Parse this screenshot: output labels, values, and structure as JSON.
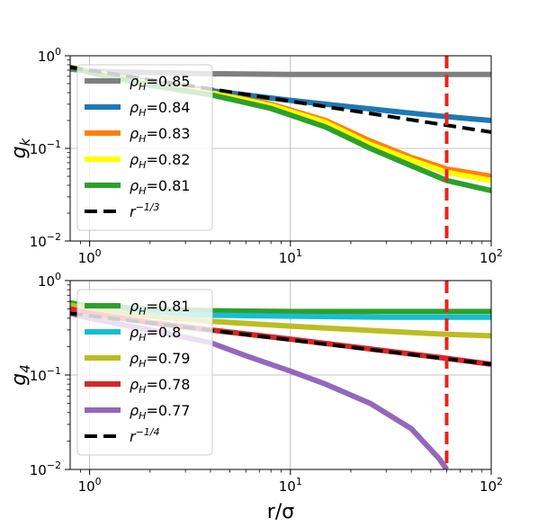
{
  "chart_data": [
    {
      "type": "line",
      "x_scale": "log",
      "y_scale": "log",
      "xlim": [
        0.8,
        100
      ],
      "ylim": [
        0.01,
        1
      ],
      "xlabel": "",
      "ylabel": "g",
      "ylabel_sub": "k",
      "x_ticks": [
        {
          "value": 1,
          "base": "10",
          "exp": "0"
        },
        {
          "value": 10,
          "base": "10",
          "exp": "1"
        },
        {
          "value": 100,
          "base": "10",
          "exp": "2"
        }
      ],
      "y_ticks": [
        {
          "value": 0.01,
          "base": "10",
          "exp": "−2"
        },
        {
          "value": 0.1,
          "base": "10",
          "exp": "−1"
        },
        {
          "value": 1,
          "base": "10",
          "exp": "0"
        }
      ],
      "grid": true,
      "legend_position": "upper-left",
      "vline": {
        "x": 60,
        "color": "#e8241c"
      },
      "series": [
        {
          "name": "0.85",
          "label_sym": "ρ",
          "label_sub": "H",
          "label_rest": "=0.85",
          "color": "#7f7f7f",
          "x": [
            0.8,
            1,
            2,
            4,
            10,
            30,
            100
          ],
          "y": [
            0.72,
            0.68,
            0.66,
            0.64,
            0.63,
            0.63,
            0.63
          ]
        },
        {
          "name": "0.84",
          "label_sym": "ρ",
          "label_sub": "H",
          "label_rest": "=0.84",
          "color": "#1f77b4",
          "x": [
            0.8,
            1,
            2,
            4,
            10,
            20,
            40,
            60,
            100
          ],
          "y": [
            0.75,
            0.68,
            0.52,
            0.42,
            0.33,
            0.28,
            0.24,
            0.22,
            0.2
          ]
        },
        {
          "name": "0.83",
          "label_sym": "ρ",
          "label_sub": "H",
          "label_rest": "=0.83",
          "color": "#ff7f0e",
          "x": [
            0.8,
            1,
            2,
            4,
            8,
            15,
            25,
            40,
            60,
            100
          ],
          "y": [
            0.75,
            0.68,
            0.5,
            0.4,
            0.3,
            0.2,
            0.12,
            0.08,
            0.06,
            0.05
          ]
        },
        {
          "name": "0.82",
          "label_sym": "ρ",
          "label_sub": "H",
          "label_rest": "=0.82",
          "color": "#ffff00",
          "x": [
            0.8,
            1,
            2,
            4,
            8,
            15,
            25,
            40,
            60,
            100
          ],
          "y": [
            0.75,
            0.68,
            0.5,
            0.4,
            0.29,
            0.19,
            0.11,
            0.075,
            0.055,
            0.045
          ]
        },
        {
          "name": "0.81",
          "label_sym": "ρ",
          "label_sub": "H",
          "label_rest": "=0.81",
          "color": "#2ca02c",
          "x": [
            0.8,
            1,
            2,
            4,
            8,
            15,
            25,
            40,
            60,
            100
          ],
          "y": [
            0.75,
            0.66,
            0.48,
            0.38,
            0.27,
            0.17,
            0.1,
            0.065,
            0.045,
            0.035
          ]
        },
        {
          "name": "r^-1/3",
          "label_sym": "r",
          "label_sup": "−1/3",
          "color": "#000000",
          "dashed": true,
          "x": [
            0.8,
            100
          ],
          "y": [
            0.75,
            0.15
          ]
        }
      ]
    },
    {
      "type": "line",
      "x_scale": "log",
      "y_scale": "log",
      "xlim": [
        0.8,
        100
      ],
      "ylim": [
        0.01,
        1
      ],
      "xlabel": "r/σ",
      "ylabel": "g",
      "ylabel_sub": "4",
      "x_ticks": [
        {
          "value": 1,
          "base": "10",
          "exp": "0"
        },
        {
          "value": 10,
          "base": "10",
          "exp": "1"
        },
        {
          "value": 100,
          "base": "10",
          "exp": "2"
        }
      ],
      "y_ticks": [
        {
          "value": 0.01,
          "base": "10",
          "exp": "−2"
        },
        {
          "value": 0.1,
          "base": "10",
          "exp": "−1"
        },
        {
          "value": 1,
          "base": "10",
          "exp": "0"
        }
      ],
      "grid": true,
      "legend_position": "upper-left",
      "vline": {
        "x": 60,
        "color": "#e8241c"
      },
      "series": [
        {
          "name": "0.81",
          "label_sym": "ρ",
          "label_sub": "H",
          "label_rest": "=0.81",
          "color": "#2ca02c",
          "x": [
            0.8,
            1,
            2,
            4,
            10,
            30,
            100
          ],
          "y": [
            0.58,
            0.54,
            0.5,
            0.48,
            0.47,
            0.47,
            0.47
          ]
        },
        {
          "name": "0.8",
          "label_sym": "ρ",
          "label_sub": "H",
          "label_rest": "=0.8",
          "color": "#17becf",
          "x": [
            0.8,
            1,
            2,
            4,
            10,
            30,
            100
          ],
          "y": [
            0.55,
            0.5,
            0.45,
            0.43,
            0.42,
            0.41,
            0.41
          ]
        },
        {
          "name": "0.79",
          "label_sym": "ρ",
          "label_sub": "H",
          "label_rest": "=0.79",
          "color": "#bcbd22",
          "x": [
            0.8,
            1,
            2,
            4,
            10,
            30,
            60,
            100
          ],
          "y": [
            0.55,
            0.5,
            0.42,
            0.37,
            0.33,
            0.29,
            0.27,
            0.26
          ]
        },
        {
          "name": "0.78",
          "label_sym": "ρ",
          "label_sub": "H",
          "label_rest": "=0.78",
          "color": "#d62728",
          "x": [
            0.8,
            1,
            2,
            4,
            10,
            30,
            60,
            100
          ],
          "y": [
            0.5,
            0.45,
            0.36,
            0.3,
            0.24,
            0.18,
            0.15,
            0.13
          ]
        },
        {
          "name": "0.77",
          "label_sym": "ρ",
          "label_sub": "H",
          "label_rest": "=0.77",
          "color": "#9467bd",
          "x": [
            0.8,
            1,
            2,
            4,
            6,
            10,
            15,
            25,
            40,
            55,
            60
          ],
          "y": [
            0.45,
            0.4,
            0.3,
            0.22,
            0.16,
            0.11,
            0.08,
            0.05,
            0.027,
            0.013,
            0.01
          ]
        },
        {
          "name": "r^-1/4",
          "label_sym": "r",
          "label_sup": "−1/4",
          "color": "#000000",
          "dashed": true,
          "x": [
            0.8,
            100
          ],
          "y": [
            0.45,
            0.13
          ]
        }
      ]
    }
  ]
}
